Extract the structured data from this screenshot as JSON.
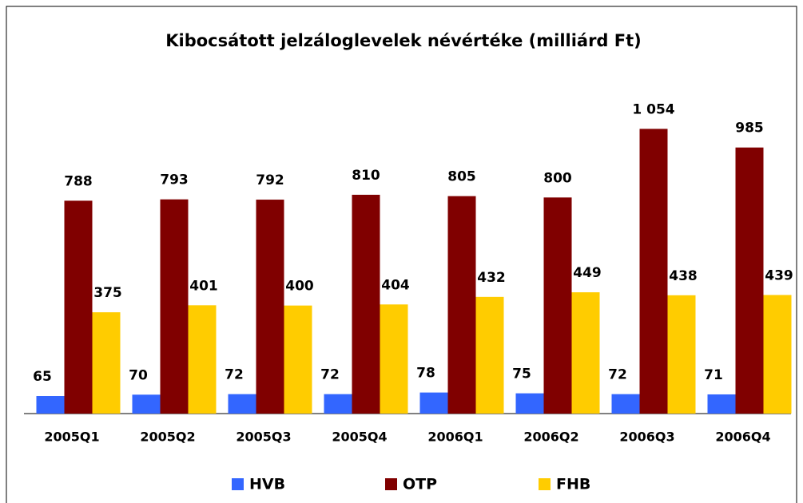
{
  "chart_data": {
    "type": "bar",
    "title": "Kibocsátott jelzáloglevelek névértéke (milliárd Ft)",
    "categories": [
      "2005Q1",
      "2005Q2",
      "2005Q3",
      "2005Q4",
      "2006Q1",
      "2006Q2",
      "2006Q3",
      "2006Q4"
    ],
    "series": [
      {
        "name": "HVB",
        "color": "#3366ff",
        "values": [
          65,
          70,
          72,
          72,
          78,
          75,
          72,
          71
        ]
      },
      {
        "name": "OTP",
        "color": "#800000",
        "values": [
          788,
          793,
          792,
          810,
          805,
          800,
          1054,
          985
        ],
        "value_labels": [
          "788",
          "793",
          "792",
          "810",
          "805",
          "800",
          "1 054",
          "985"
        ]
      },
      {
        "name": "FHB",
        "color": "#ffcc00",
        "values": [
          375,
          401,
          400,
          404,
          432,
          449,
          438,
          439
        ]
      }
    ],
    "ylim": [
      0,
      1200
    ],
    "legend": "bottom"
  }
}
